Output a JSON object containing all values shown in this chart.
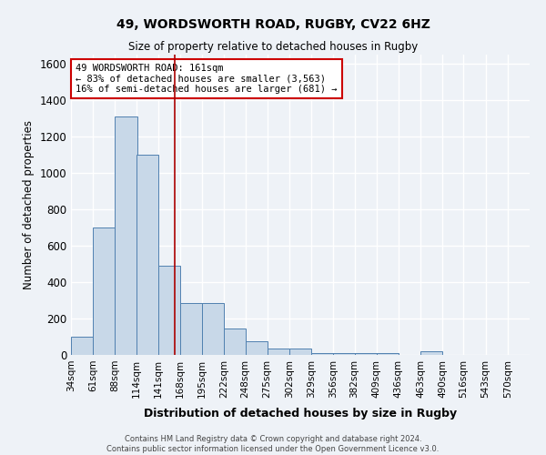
{
  "title_line1": "49, WORDSWORTH ROAD, RUGBY, CV22 6HZ",
  "title_line2": "Size of property relative to detached houses in Rugby",
  "xlabel": "Distribution of detached houses by size in Rugby",
  "ylabel": "Number of detached properties",
  "footer_line1": "Contains HM Land Registry data © Crown copyright and database right 2024.",
  "footer_line2": "Contains public sector information licensed under the Open Government Licence v3.0.",
  "annotation_line1": "49 WORDSWORTH ROAD: 161sqm",
  "annotation_line2": "← 83% of detached houses are smaller (3,563)",
  "annotation_line3": "16% of semi-detached houses are larger (681) →",
  "bar_left_edges": [
    34,
    61,
    88,
    114,
    141,
    168,
    195,
    222,
    248,
    275,
    302,
    329,
    356,
    382,
    409,
    436,
    463,
    490,
    516,
    543
  ],
  "bar_values": [
    100,
    700,
    1310,
    1100,
    490,
    285,
    285,
    145,
    75,
    35,
    35,
    10,
    10,
    10,
    10,
    0,
    20,
    0,
    0,
    0
  ],
  "bin_width": 27,
  "bin_labels": [
    "34sqm",
    "61sqm",
    "88sqm",
    "114sqm",
    "141sqm",
    "168sqm",
    "195sqm",
    "222sqm",
    "248sqm",
    "275sqm",
    "302sqm",
    "329sqm",
    "356sqm",
    "382sqm",
    "409sqm",
    "436sqm",
    "463sqm",
    "490sqm",
    "516sqm",
    "543sqm",
    "570sqm"
  ],
  "property_size": 161,
  "bar_color": "#c8d8e8",
  "bar_edge_color": "#5080b0",
  "vline_color": "#aa0000",
  "bg_color": "#eef2f7",
  "grid_color": "#ffffff",
  "ylim": [
    0,
    1650
  ],
  "yticks": [
    0,
    200,
    400,
    600,
    800,
    1000,
    1200,
    1400,
    1600
  ]
}
